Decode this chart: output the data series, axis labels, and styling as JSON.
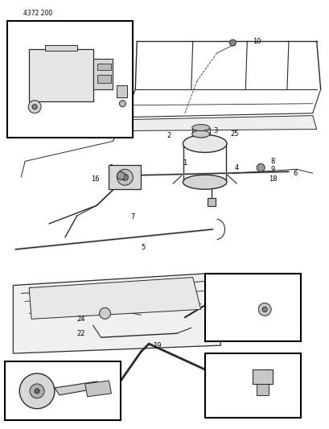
{
  "title": "4372 200",
  "bg_color": "#ffffff",
  "fig_width": 4.1,
  "fig_height": 5.33,
  "dpi": 100,
  "line_color": "#2a2a2a",
  "label_fontsize": 6.0
}
